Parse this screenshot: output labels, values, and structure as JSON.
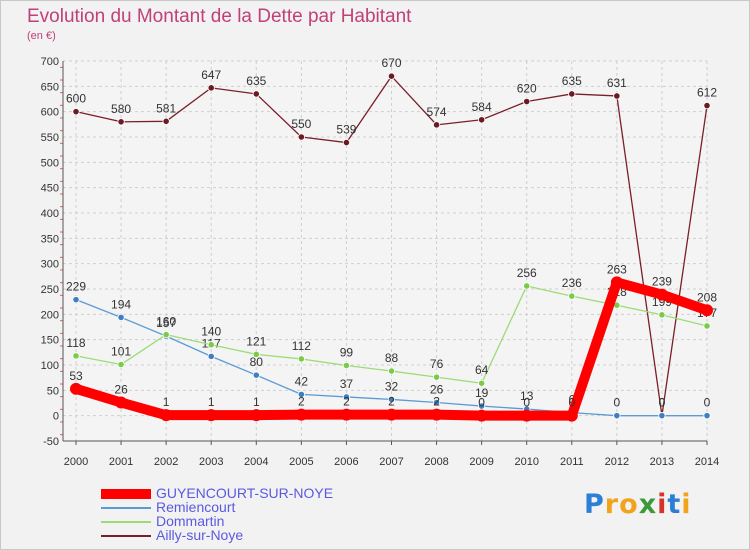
{
  "page": {
    "title": "Evolution du Montant de la Dette par Habitant",
    "unit": "(en €)"
  },
  "logo": {
    "text": "Proxiti",
    "colors": [
      "#2b7fd6",
      "#f2a31c",
      "#f2a31c",
      "#3a9a3a",
      "#d6342b",
      "#2b7fd6",
      "#f2a31c"
    ]
  },
  "chart_data": {
    "type": "line",
    "title": "Evolution du Montant de la Dette par Habitant",
    "ylabel": "(en €)",
    "xlabel": "",
    "ylim": [
      -50,
      700
    ],
    "yticks": [
      -50,
      0,
      50,
      100,
      150,
      200,
      250,
      300,
      350,
      400,
      450,
      500,
      550,
      600,
      650,
      700
    ],
    "x": [
      "2000",
      "2001",
      "2002",
      "2003",
      "2004",
      "2005",
      "2006",
      "2007",
      "2008",
      "2009",
      "2010",
      "2011",
      "2012",
      "2013",
      "2014"
    ],
    "grid": true,
    "legend_position": "bottom-left",
    "series": [
      {
        "name": "Ailly-sur-Noye",
        "color": "#7a1f2a",
        "marker": "#6a1a22",
        "values": [
          600,
          580,
          581,
          647,
          635,
          550,
          539,
          670,
          574,
          584,
          620,
          635,
          631,
          0,
          612
        ],
        "labels": [
          "600",
          "580",
          "581",
          "647",
          "635",
          "550",
          "539",
          "670",
          "574",
          "584",
          "620",
          "635",
          "631",
          "0",
          "612"
        ]
      },
      {
        "name": "Remiencourt",
        "color": "#5b9bd5",
        "marker": "#3f7fc0",
        "values": [
          229,
          194,
          157,
          117,
          80,
          42,
          37,
          32,
          26,
          19,
          13,
          6,
          0,
          0,
          0
        ],
        "labels": [
          "229",
          "194",
          "157",
          "117",
          "80",
          "42",
          "37",
          "32",
          "26",
          "19",
          "13",
          "6",
          "0",
          "0",
          "0"
        ]
      },
      {
        "name": "Dommartin",
        "color": "#9cdc78",
        "marker": "#7acb4a",
        "values": [
          118,
          101,
          160,
          140,
          121,
          112,
          99,
          88,
          76,
          64,
          256,
          236,
          218,
          199,
          177
        ],
        "labels": [
          "118",
          "101",
          "160",
          "140",
          "121",
          "112",
          "99",
          "88",
          "76",
          "64",
          "256",
          "236",
          "218",
          "199",
          "177"
        ]
      },
      {
        "name": "GUYENCOURT-SUR-NOYE",
        "color": "#ff0000",
        "marker": "#ff0000",
        "values": [
          53,
          26,
          1,
          1,
          1,
          2,
          2,
          2,
          2,
          0,
          0,
          0,
          263,
          239,
          208
        ],
        "labels": [
          "53",
          "26",
          "1",
          "1",
          "1",
          "2",
          "2",
          "2",
          "2",
          "0",
          "0",
          "0",
          "263",
          "239",
          "208"
        ]
      }
    ],
    "legend": [
      "GUYENCOURT-SUR-NOYE",
      "Remiencourt",
      "Dommartin",
      "Ailly-sur-Noye"
    ]
  }
}
